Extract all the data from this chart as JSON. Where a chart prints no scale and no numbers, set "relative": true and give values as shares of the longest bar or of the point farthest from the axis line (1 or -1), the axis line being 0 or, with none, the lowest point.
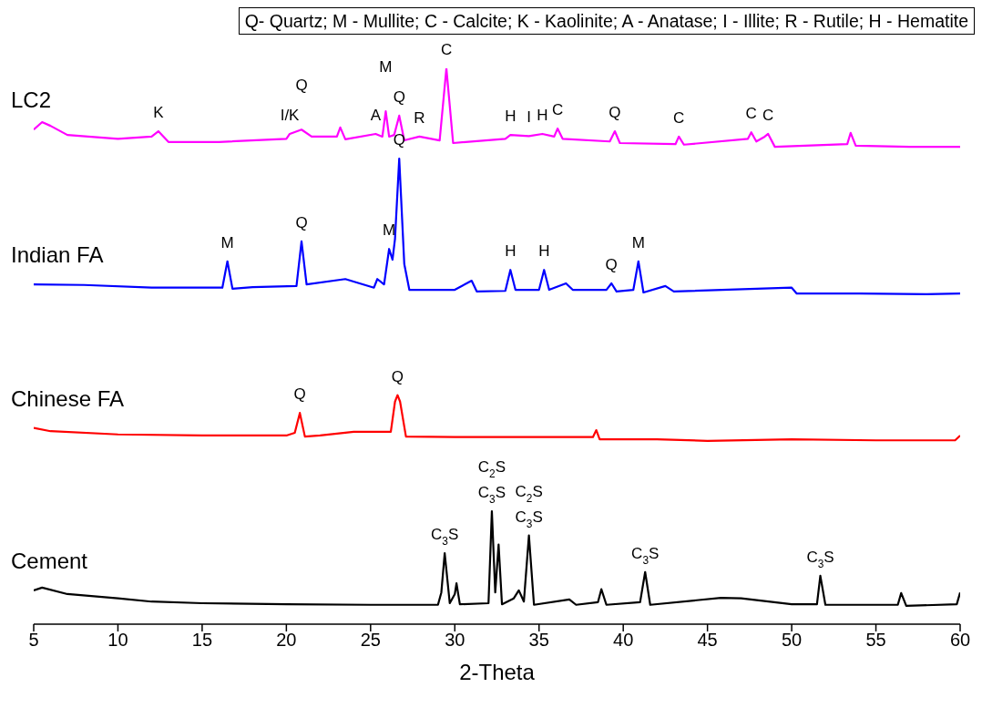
{
  "chart_data": {
    "type": "line",
    "relative": true,
    "xlabel": "2-Theta",
    "xlim": [
      5,
      60
    ],
    "xticks": [
      5,
      10,
      15,
      20,
      25,
      30,
      35,
      40,
      45,
      50,
      55,
      60
    ],
    "series": [
      {
        "name": "LC2",
        "color": "#ff00ff",
        "x": [
          5,
          5.5,
          6,
          7,
          10,
          12,
          12.4,
          13,
          16,
          20,
          20.2,
          20.9,
          21.5,
          23,
          23.2,
          23.5,
          25.3,
          25.7,
          25.9,
          26.1,
          26.4,
          26.7,
          27,
          27.9,
          29.1,
          29.5,
          29.9,
          33,
          33.3,
          34.4,
          35.2,
          35.9,
          36.1,
          36.4,
          39.2,
          39.5,
          39.8,
          43.1,
          43.3,
          43.6,
          47.4,
          47.6,
          47.9,
          48.4,
          48.6,
          49,
          53.3,
          53.5,
          53.8,
          57,
          60
        ],
        "values": [
          0.886,
          0.9,
          0.893,
          0.876,
          0.869,
          0.873,
          0.883,
          0.863,
          0.863,
          0.869,
          0.878,
          0.886,
          0.873,
          0.873,
          0.89,
          0.868,
          0.878,
          0.873,
          0.92,
          0.873,
          0.876,
          0.912,
          0.866,
          0.873,
          0.866,
          1,
          0.861,
          0.869,
          0.876,
          0.874,
          0.878,
          0.873,
          0.888,
          0.869,
          0.864,
          0.883,
          0.861,
          0.859,
          0.873,
          0.858,
          0.869,
          0.881,
          0.864,
          0.873,
          0.878,
          0.854,
          0.859,
          0.88,
          0.856,
          0.854,
          0.854
        ]
      },
      {
        "name": "Indian FA",
        "color": "#0000ff",
        "x": [
          5,
          8,
          12,
          16.2,
          16.5,
          16.8,
          18,
          20.6,
          20.9,
          21.2,
          23.5,
          25.2,
          25.4,
          25.8,
          26.1,
          26.3,
          26.45,
          26.7,
          27.0,
          27.3,
          30,
          31,
          31.3,
          33.0,
          33.3,
          33.6,
          35,
          35.3,
          35.6,
          36.6,
          37,
          39,
          39.3,
          39.6,
          40.6,
          40.9,
          41.2,
          42.5,
          43,
          50,
          50.3,
          54,
          58,
          60
        ],
        "values": [
          0.598,
          0.597,
          0.592,
          0.592,
          0.641,
          0.59,
          0.593,
          0.595,
          0.678,
          0.598,
          0.608,
          0.592,
          0.608,
          0.598,
          0.664,
          0.644,
          0.683,
          0.832,
          0.636,
          0.588,
          0.588,
          0.605,
          0.585,
          0.586,
          0.625,
          0.588,
          0.588,
          0.625,
          0.588,
          0.6,
          0.588,
          0.588,
          0.6,
          0.585,
          0.588,
          0.641,
          0.583,
          0.595,
          0.585,
          0.592,
          0.581,
          0.581,
          0.58,
          0.581
        ]
      },
      {
        "name": "Chinese FA",
        "color": "#ff0000",
        "x": [
          5,
          6,
          10,
          15,
          20,
          20.5,
          20.8,
          21.1,
          22,
          24,
          26.2,
          26.45,
          26.6,
          26.75,
          27.1,
          30,
          35,
          38.2,
          38.4,
          38.6,
          42,
          45,
          50,
          55,
          59.7,
          60
        ],
        "values": [
          0.331,
          0.325,
          0.319,
          0.317,
          0.317,
          0.322,
          0.359,
          0.315,
          0.317,
          0.324,
          0.324,
          0.38,
          0.392,
          0.38,
          0.315,
          0.314,
          0.314,
          0.314,
          0.327,
          0.31,
          0.31,
          0.307,
          0.31,
          0.308,
          0.308,
          0.317
        ]
      },
      {
        "name": "Cement",
        "color": "#000000",
        "x": [
          5,
          5.5,
          7,
          10,
          12,
          15,
          20,
          25,
          29,
          29.2,
          29.4,
          29.7,
          30.0,
          30.1,
          30.3,
          32.0,
          32.2,
          32.4,
          32.6,
          32.8,
          33.5,
          33.8,
          34.1,
          34.4,
          34.7,
          36.8,
          37.2,
          38.5,
          38.7,
          39,
          41,
          41.3,
          41.6,
          45.8,
          47,
          50,
          51.5,
          51.7,
          52,
          56.3,
          56.5,
          56.8,
          59.8,
          60
        ],
        "values": [
          0.029,
          0.034,
          0.022,
          0.014,
          0.008,
          0.005,
          0.003,
          0.002,
          0.002,
          0.025,
          0.098,
          0.005,
          0.022,
          0.042,
          0.003,
          0.005,
          0.176,
          0.025,
          0.114,
          0.003,
          0.014,
          0.029,
          0.008,
          0.131,
          0.002,
          0.012,
          0.002,
          0.007,
          0.031,
          0.002,
          0.007,
          0.063,
          0.002,
          0.015,
          0.014,
          0.003,
          0.003,
          0.056,
          0.002,
          0.002,
          0.024,
          0,
          0.003,
          0.025
        ]
      }
    ],
    "annotations": [
      "Q- Quartz; M - Mullite; C - Calcite; K - Kaolinite; A - Anatase; I - Illite; R - Rutile; H - Hematite",
      {
        "text": "K",
        "x": 12.4,
        "y": 0.883
      },
      {
        "text": "I/K",
        "x": 20.2,
        "y": 0.878
      },
      {
        "text": "Q",
        "x": 20.9,
        "y": 0.886
      },
      {
        "text": "A",
        "x": 25.3,
        "y": 0.878
      },
      {
        "text": "M",
        "x": 25.9,
        "y": 0.92
      },
      {
        "text": "Q",
        "x": 26.7,
        "y": 0.912
      },
      {
        "text": "R",
        "x": 27.9,
        "y": 0.873
      },
      {
        "text": "C",
        "x": 29.5,
        "y": 1
      },
      {
        "text": "H",
        "x": 33.3,
        "y": 0.876
      },
      {
        "text": "I",
        "x": 34.4,
        "y": 0.874
      },
      {
        "text": "H",
        "x": 35.2,
        "y": 0.878
      },
      {
        "text": "C",
        "x": 36.1,
        "y": 0.888
      },
      {
        "text": "Q",
        "x": 39.5,
        "y": 0.883
      },
      {
        "text": "C",
        "x": 43.3,
        "y": 0.873
      },
      {
        "text": "C",
        "x": 47.6,
        "y": 0.881
      },
      {
        "text": "C",
        "x": 48.6,
        "y": 0.878
      },
      {
        "text": "M",
        "x": 16.5,
        "y": 0.641
      },
      {
        "text": "Q",
        "x": 20.9,
        "y": 0.678
      },
      {
        "text": "M",
        "x": 26.1,
        "y": 0.664
      },
      {
        "text": "Q",
        "x": 26.7,
        "y": 0.832
      },
      {
        "text": "H",
        "x": 33.3,
        "y": 0.625
      },
      {
        "text": "H",
        "x": 35.3,
        "y": 0.625
      },
      {
        "text": "Q",
        "x": 39.3,
        "y": 0.6
      },
      {
        "text": "M",
        "x": 40.9,
        "y": 0.641
      },
      {
        "text": "Q",
        "x": 20.8,
        "y": 0.359
      },
      {
        "text": "Q",
        "x": 26.6,
        "y": 0.392
      },
      {
        "text": "C$_{3}$S",
        "x": 29.4,
        "y": 0.098
      },
      {
        "text": "C$_{3}$S",
        "x": 32.2,
        "y": 0.176
      },
      {
        "text": "C$_{2}$S",
        "x": 32.2,
        "y": 0.176
      },
      {
        "text": "C$_{3}$S",
        "x": 34.4,
        "y": 0.131
      },
      {
        "text": "C$_{2}$S",
        "x": 34.4,
        "y": 0.131
      },
      {
        "text": "C$_{3}$S",
        "x": 41.3,
        "y": 0.063
      },
      {
        "text": "C$_{3}$S",
        "x": 51.7,
        "y": 0.056
      }
    ]
  }
}
